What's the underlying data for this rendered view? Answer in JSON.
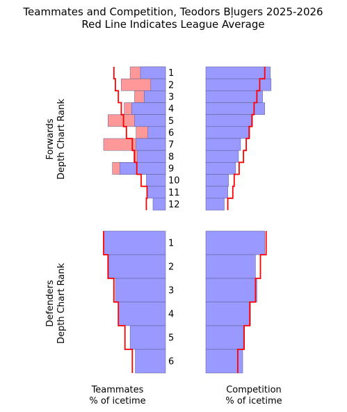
{
  "title_line1": "Teammates and Competition, Teodors Bļugers 2025-2026",
  "title_line2": "Red Line Indicates League Average",
  "colors": {
    "blue": "#9999ff",
    "red_bar": "#ff9999",
    "avg_line": "#ff0000",
    "bar_edge": "#5a5a8a"
  },
  "chart_data": [
    {
      "group": "Forwards",
      "ylabel_line1": "Forwards",
      "ylabel_line2": "Depth Chart Rank",
      "ranks": [
        "1",
        "2",
        "3",
        "4",
        "5",
        "6",
        "7",
        "8",
        "9",
        "10",
        "11",
        "12"
      ],
      "teammates_blue": [
        0.34,
        0.2,
        0.29,
        0.46,
        0.42,
        0.24,
        0.4,
        0.38,
        0.62,
        0.26,
        0.25,
        0.17
      ],
      "teammates_red": [
        0.48,
        0.6,
        0.42,
        0.56,
        0.78,
        0.4,
        0.84,
        0.43,
        0.72,
        0.0,
        0.0,
        0.0
      ],
      "teammates_avg": [
        0.7,
        0.68,
        0.64,
        0.6,
        0.57,
        0.53,
        0.45,
        0.42,
        0.39,
        0.33,
        0.25,
        0.26
      ],
      "competition": [
        0.91,
        0.92,
        0.8,
        0.83,
        0.66,
        0.62,
        0.49,
        0.46,
        0.42,
        0.32,
        0.31,
        0.26
      ],
      "competition_avg": [
        0.83,
        0.76,
        0.72,
        0.68,
        0.65,
        0.61,
        0.57,
        0.53,
        0.47,
        0.4,
        0.38,
        0.31
      ]
    },
    {
      "group": "Defenders",
      "ylabel_line1": "Defenders",
      "ylabel_line2": "Depth Chart Rank",
      "ranks": [
        "1",
        "2",
        "3",
        "4",
        "5",
        "6"
      ],
      "teammates_blue": [
        0.84,
        0.77,
        0.68,
        0.64,
        0.48,
        0.41
      ],
      "teammates_red": [
        0.0,
        0.0,
        0.0,
        0.0,
        0.0,
        0.0
      ],
      "teammates_avg": [
        0.84,
        0.78,
        0.7,
        0.64,
        0.55,
        0.45
      ],
      "competition": [
        0.83,
        0.7,
        0.72,
        0.63,
        0.53,
        0.52
      ],
      "competition_avg": [
        0.85,
        0.77,
        0.7,
        0.62,
        0.54,
        0.45
      ]
    }
  ],
  "xlabel_left_line1": "Teammates",
  "xlabel_left_line2": "% of icetime",
  "xlabel_right_line1": "Competition",
  "xlabel_right_line2": "% of icetime"
}
